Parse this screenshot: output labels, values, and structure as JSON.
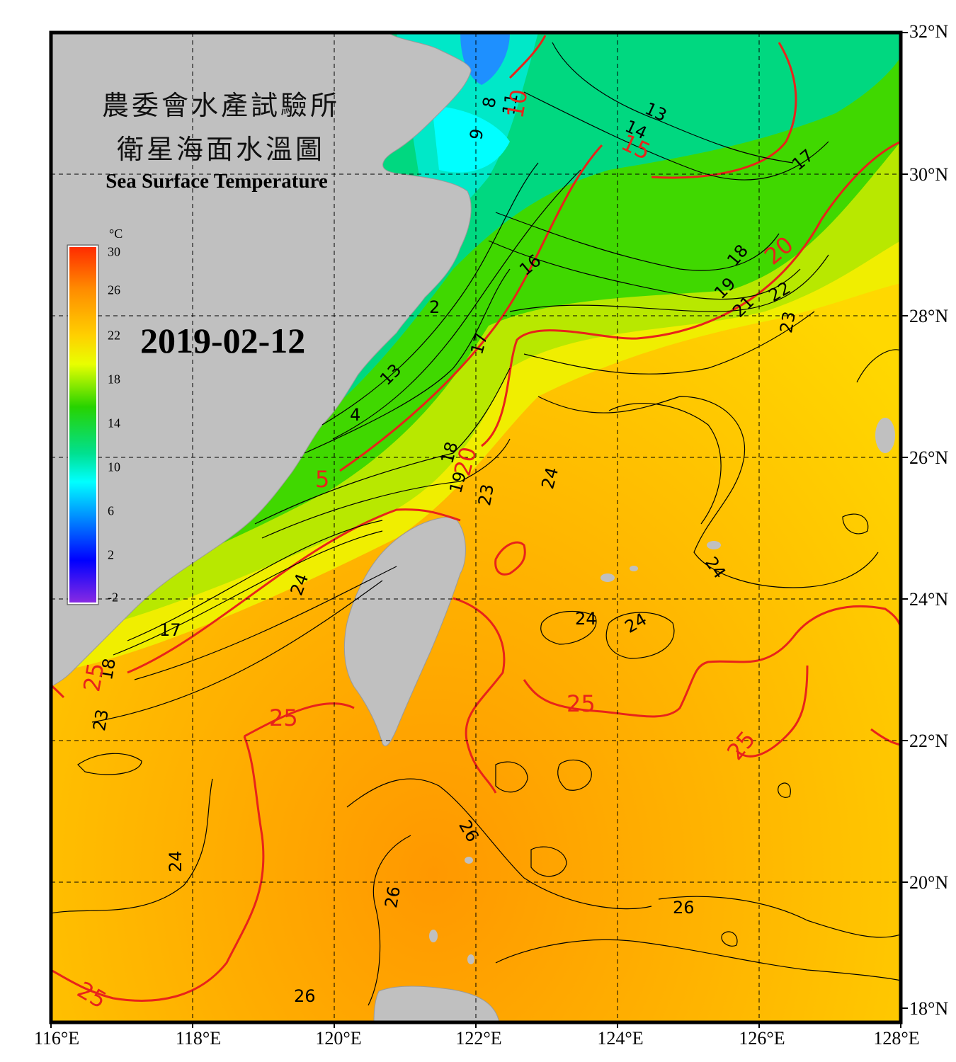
{
  "title_zh_line1": "農委會水產試驗所",
  "title_zh_line2": "衛星海面水溫圖",
  "title_en": "Sea Surface Temperature",
  "date": "2019-02-12",
  "colorbar": {
    "unit": "°C",
    "ticks": [
      "30",
      "26",
      "22",
      "18",
      "14",
      "10",
      "6",
      "2",
      "-2"
    ]
  },
  "map": {
    "lon_labels": [
      "116°E",
      "118°E",
      "120°E",
      "122°E",
      "124°E",
      "126°E",
      "128°E"
    ],
    "lat_labels": [
      "32°N",
      "30°N",
      "28°N",
      "26°N",
      "24°N",
      "22°N",
      "20°N",
      "18°N"
    ],
    "lon_range": [
      116,
      128
    ],
    "lat_range": [
      18,
      32
    ]
  },
  "contour_labels": {
    "black": [
      "8",
      "9",
      "11",
      "13",
      "14",
      "17",
      "16",
      "18",
      "19",
      "21",
      "22",
      "23",
      "2",
      "13",
      "4",
      "17",
      "18",
      "19",
      "23",
      "24",
      "24",
      "24",
      "24",
      "24",
      "17",
      "18",
      "23",
      "24",
      "26",
      "26",
      "26",
      "26"
    ],
    "red": [
      "10",
      "15",
      "20",
      "5",
      "20",
      "25",
      "25",
      "25",
      "25",
      "25"
    ]
  },
  "colors": {
    "land": "#c0c0c0",
    "contour_red": "#e8231a",
    "contour_black": "#000000",
    "frame": "#000000"
  }
}
